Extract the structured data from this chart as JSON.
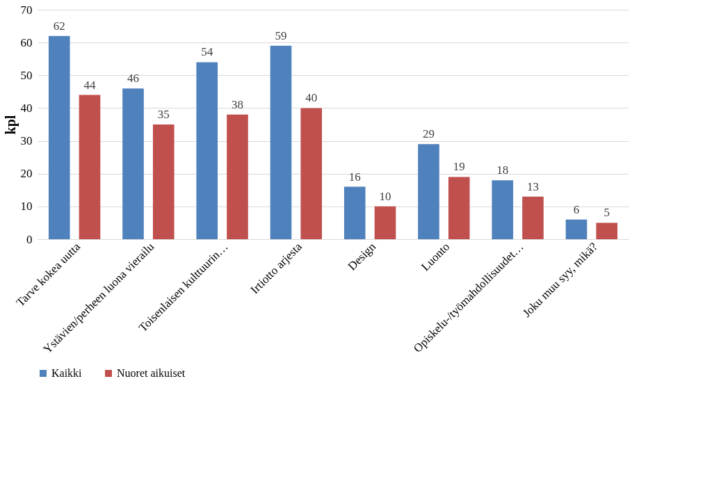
{
  "chart_data": {
    "type": "bar",
    "ylabel": "kpl",
    "categories": [
      "Tarve kokea uutta",
      "Ystävien/perheen luona vierailu",
      "Toisenlaisen kulttuurin…",
      "Irtiotto arjesta",
      "Design",
      "Luonto",
      "Opiskelu-/työmahdollisuudet…",
      "Joku muu syy, mikä?"
    ],
    "series": [
      {
        "name": "Kaikki",
        "color": "#4f81bd",
        "values": [
          62,
          46,
          54,
          59,
          16,
          29,
          18,
          6
        ]
      },
      {
        "name": "Nuoret aikuiset",
        "color": "#c0504d",
        "values": [
          44,
          35,
          38,
          40,
          10,
          19,
          13,
          5
        ]
      }
    ],
    "ylim": [
      0,
      70
    ],
    "yticks": [
      0,
      10,
      20,
      30,
      40,
      50,
      60,
      70
    ],
    "grid": "y",
    "legend": "bottom",
    "data_labels": true
  }
}
